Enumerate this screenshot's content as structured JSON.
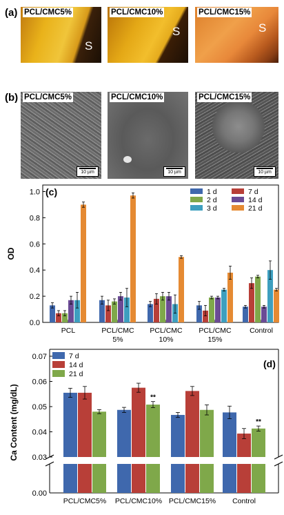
{
  "panel_a": {
    "letter": "(a)",
    "images": [
      {
        "label": "PCL/CMC5%",
        "mark": "S"
      },
      {
        "label": "PCL/CMC10%",
        "mark": "S"
      },
      {
        "label": "PCL/CMC15%",
        "mark": "S"
      }
    ]
  },
  "panel_b": {
    "letter": "(b)",
    "images": [
      {
        "label": "PCL/CMC5%",
        "scale": "10 µm"
      },
      {
        "label": "PCL/CMC10%",
        "scale": "10 µm"
      },
      {
        "label": "PCL/CMC15%",
        "scale": "10 µm"
      }
    ]
  },
  "chart_data": [
    {
      "panel": "(c)",
      "type": "bar",
      "ylabel": "OD",
      "xlabel": "",
      "ylim": [
        0,
        1.05
      ],
      "yticks": [
        "0.0",
        "0.2",
        "0.4",
        "0.6",
        "0.8",
        "1.0"
      ],
      "ytick_values": [
        0,
        0.2,
        0.4,
        0.6,
        0.8,
        1.0
      ],
      "categories": [
        "PCL",
        "PCL/CMC\n5%",
        "PCL/CMC\n10%",
        "PCL/CMC\n15%",
        "Control"
      ],
      "series": [
        {
          "name": "1 d",
          "color": "#3f68ad",
          "values": [
            0.13,
            0.17,
            0.14,
            0.13,
            0.12
          ],
          "errors": [
            0.02,
            0.03,
            0.02,
            0.03,
            0.01
          ]
        },
        {
          "name": "7 d",
          "color": "#b83f38",
          "values": [
            0.07,
            0.13,
            0.18,
            0.09,
            0.3
          ],
          "errors": [
            0.02,
            0.04,
            0.04,
            0.04,
            0.04
          ]
        },
        {
          "name": "2 d",
          "color": "#7fa84a",
          "values": [
            0.07,
            0.16,
            0.2,
            0.19,
            0.35
          ],
          "errors": [
            0.02,
            0.02,
            0.03,
            0.01,
            0.01
          ]
        },
        {
          "name": "14 d",
          "color": "#6b4b95",
          "values": [
            0.17,
            0.2,
            0.2,
            0.19,
            0.12
          ],
          "errors": [
            0.03,
            0.03,
            0.03,
            0.01,
            0.01
          ]
        },
        {
          "name": "3 d",
          "color": "#3e9fbf",
          "values": [
            0.17,
            0.19,
            0.14,
            0.25,
            0.4
          ],
          "errors": [
            0.06,
            0.07,
            0.07,
            0.01,
            0.07
          ]
        },
        {
          "name": "21 d",
          "color": "#e58a33",
          "values": [
            0.9,
            0.97,
            0.5,
            0.38,
            0.25
          ],
          "errors": [
            0.02,
            0.02,
            0.01,
            0.05,
            0.01
          ]
        }
      ],
      "legend_order": [
        "1 d",
        "7 d",
        "2 d",
        "14 d",
        "3 d",
        "21 d"
      ],
      "legend": "top-right, two columns"
    },
    {
      "panel": "(d)",
      "type": "bar",
      "ylabel": "Ca Content (mg/dL)",
      "xlabel": "",
      "axis_break": true,
      "ylim_upper": [
        0.03,
        0.07
      ],
      "ylim_lower": [
        0.0,
        0.001
      ],
      "yticks": [
        "0.00",
        "0.03",
        "0.04",
        "0.05",
        "0.06",
        "0.07"
      ],
      "categories": [
        "PCL/CMC5%",
        "PCL/CMC10%",
        "PCL/CMC15%",
        "Control"
      ],
      "series": [
        {
          "name": "7 d",
          "color": "#3f68ad",
          "values": [
            0.0555,
            0.0487,
            0.0467,
            0.0477
          ],
          "errors": [
            0.0018,
            0.001,
            0.001,
            0.0025
          ]
        },
        {
          "name": "14 d",
          "color": "#b83f38",
          "values": [
            0.0555,
            0.0575,
            0.0562,
            0.0393
          ],
          "errors": [
            0.0025,
            0.0018,
            0.0018,
            0.002
          ]
        },
        {
          "name": "21 d",
          "color": "#7fa84a",
          "values": [
            0.048,
            0.0508,
            0.0487,
            0.0413
          ],
          "errors": [
            0.0008,
            0.0012,
            0.002,
            0.001
          ]
        }
      ],
      "annotations": [
        {
          "category": "PCL/CMC10%",
          "series": "21 d",
          "text": "**"
        },
        {
          "category": "Control",
          "series": "21 d",
          "text": "**"
        }
      ],
      "legend": "top-left"
    }
  ]
}
